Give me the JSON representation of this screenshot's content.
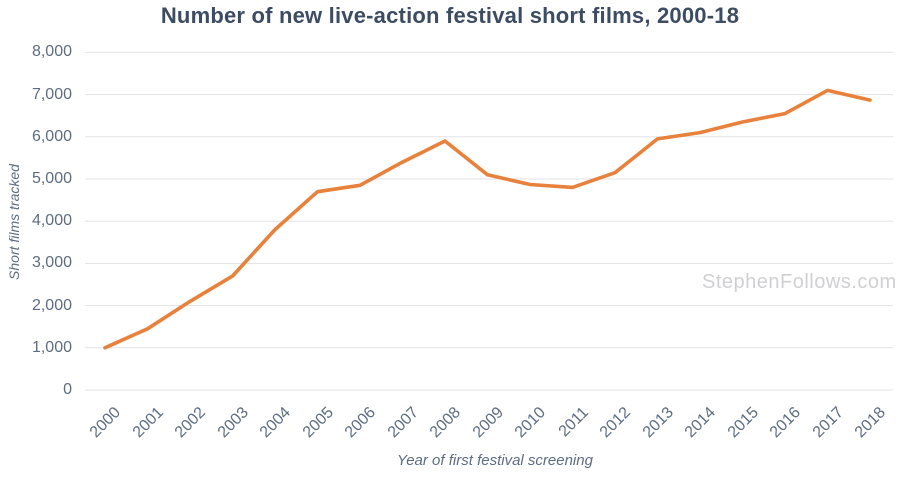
{
  "title": {
    "text": "Number of new live-action festival short films, 2000-18",
    "color": "#3c4c62"
  },
  "watermark": {
    "text": "StephenFollows.com",
    "color": "#d0d0d3"
  },
  "chart_data": {
    "type": "line",
    "title": "Number of new live-action festival short films, 2000-18",
    "xlabel": "Year of first festival screening",
    "ylabel": "Short films tracked",
    "x": [
      2000,
      2001,
      2002,
      2003,
      2004,
      2005,
      2006,
      2007,
      2008,
      2009,
      2010,
      2011,
      2012,
      2013,
      2014,
      2015,
      2016,
      2017,
      2018
    ],
    "values": [
      1000,
      1450,
      2100,
      2700,
      3800,
      4700,
      4850,
      5400,
      5900,
      5100,
      4870,
      4800,
      5150,
      5950,
      6100,
      6350,
      6550,
      7100,
      6870
    ],
    "ylim": [
      0,
      8000
    ],
    "ytick_interval": 1000,
    "ytick_labels": [
      "0",
      "1,000",
      "2,000",
      "3,000",
      "4,000",
      "5,000",
      "6,000",
      "7,000",
      "8,000"
    ],
    "grid": true,
    "legend": "none",
    "line_color": "#e8813c",
    "line_width": 3.6,
    "gridline_color": "#e3e3e5",
    "axis_label_color": "#5d6c81"
  }
}
